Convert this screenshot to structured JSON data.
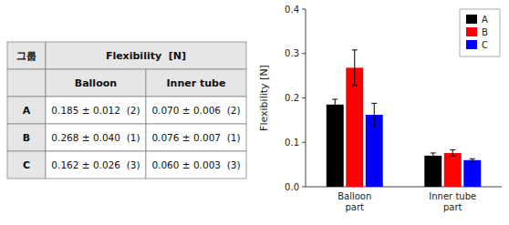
{
  "chart_data": [
    {
      "type": "bar",
      "ylabel": "Flexibility [N]",
      "categories": [
        "Balloon\npart",
        "Inner tube\npart"
      ],
      "series": [
        {
          "name": "A",
          "color": "#000000",
          "values": [
            0.185,
            0.07
          ],
          "errors": [
            0.012,
            0.006
          ]
        },
        {
          "name": "B",
          "color": "#ff0000",
          "values": [
            0.268,
            0.076
          ],
          "errors": [
            0.04,
            0.007
          ]
        },
        {
          "name": "C",
          "color": "#0000ff",
          "values": [
            0.162,
            0.06
          ],
          "errors": [
            0.026,
            0.003
          ]
        }
      ],
      "ylim": [
        0,
        0.4
      ],
      "yticks": [
        {
          "value": 0.0,
          "label": "0.0"
        },
        0.1,
        0.2,
        0.3,
        0.4
      ],
      "legend": "upper right"
    },
    {
      "type": "table",
      "header": [
        "그룹",
        "Flexibility  [N]"
      ],
      "subheader": [
        "Balloon",
        "Inner tube"
      ],
      "rows": [
        [
          "A",
          "0.185 ± 0.012  (2)",
          "0.070 ± 0.006  (2)"
        ],
        [
          "B",
          "0.268 ± 0.040  (1)",
          "0.076 ± 0.007  (1)"
        ],
        [
          "C",
          "0.162 ± 0.026  (3)",
          "0.060 ± 0.003  (3)"
        ]
      ]
    }
  ]
}
